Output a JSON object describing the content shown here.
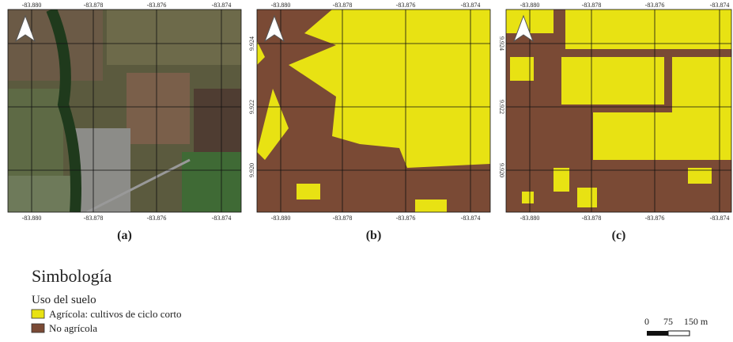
{
  "panels": [
    {
      "label": "(a)",
      "top_ticks": [
        "-83.880",
        "-83.878",
        "-83.876",
        "-83.874"
      ],
      "bottom_ticks": [
        "-83.880",
        "-83.878",
        "-83.876",
        "-83.874"
      ],
      "side_ticks": []
    },
    {
      "label": "(b)",
      "top_ticks": [
        "-83.880",
        "-83.878",
        "-83.876",
        "-83.874"
      ],
      "bottom_ticks": [
        "-83.880",
        "-83.878",
        "-83.876",
        "-83.874"
      ],
      "side_ticks": [
        "9.924",
        "9.922",
        "9.920"
      ]
    },
    {
      "label": "(c)",
      "top_ticks": [
        "-83.880",
        "-83.878",
        "-83.876",
        "-83.874"
      ],
      "bottom_ticks": [
        "-83.880",
        "-83.878",
        "-83.876",
        "-83.874"
      ],
      "side_ticks": [
        "9.924",
        "9.922",
        "9.920"
      ]
    }
  ],
  "legend": {
    "title": "Simbología",
    "subtitle": "Uso del suelo",
    "items": [
      "Agrícola: cultivos de ciclo corto",
      "No agrícola"
    ]
  },
  "scale_bar": {
    "labels": [
      "0",
      "75",
      "150 m"
    ]
  }
}
